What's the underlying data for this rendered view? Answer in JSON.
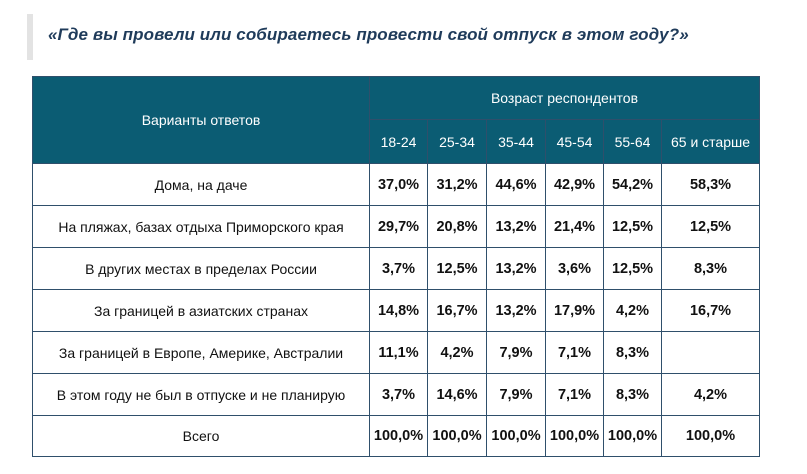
{
  "title": "«Где вы провели или собираетесь провести свой отпуск в этом году?»",
  "table": {
    "answers_header": "Варианты ответов",
    "age_header": "Возраст респондентов",
    "age_groups": [
      "18-24",
      "25-34",
      "35-44",
      "45-54",
      "55-64",
      "65 и старше"
    ],
    "rows": [
      {
        "label": "Дома, на даче",
        "values": [
          "37,0%",
          "31,2%",
          "44,6%",
          "42,9%",
          "54,2%",
          "58,3%"
        ]
      },
      {
        "label": "На пляжах, базах отдыха Приморского края",
        "values": [
          "29,7%",
          "20,8%",
          "13,2%",
          "21,4%",
          "12,5%",
          "12,5%"
        ]
      },
      {
        "label": "В других местах в пределах России",
        "values": [
          "3,7%",
          "12,5%",
          "13,2%",
          "3,6%",
          "12,5%",
          "8,3%"
        ]
      },
      {
        "label": "За границей в азиатских странах",
        "values": [
          "14,8%",
          "16,7%",
          "13,2%",
          "17,9%",
          "4,2%",
          "16,7%"
        ]
      },
      {
        "label": "За границей в Европе, Америке, Австралии",
        "values": [
          "11,1%",
          "4,2%",
          "7,9%",
          "7,1%",
          "8,3%",
          ""
        ]
      },
      {
        "label": "В этом году не был в отпуске и не планирую",
        "values": [
          "3,7%",
          "14,6%",
          "7,9%",
          "7,1%",
          "8,3%",
          "4,2%"
        ]
      },
      {
        "label": "Всего",
        "values": [
          "100,0%",
          "100,0%",
          "100,0%",
          "100,0%",
          "100,0%",
          "100,0%"
        ]
      }
    ]
  }
}
